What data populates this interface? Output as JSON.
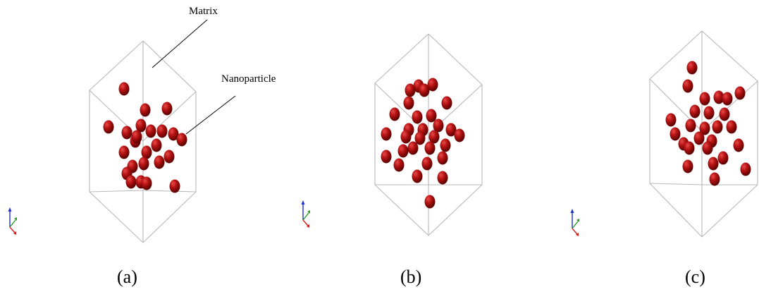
{
  "annotations": {
    "matrix_label": "Matrix",
    "nanoparticle_label": "Nanoparticle"
  },
  "panels": [
    {
      "id": "a",
      "caption": "(a)"
    },
    {
      "id": "b",
      "caption": "(b)"
    },
    {
      "id": "c",
      "caption": "(c)"
    }
  ],
  "colors": {
    "particle": "#b01010",
    "particle_highlight": "#e04040",
    "particle_shadow": "#5a0000",
    "box_edge": "#b8b8b8",
    "axis_x": "#d02020",
    "axis_y": "#20a020",
    "axis_z": "#2030d0"
  }
}
